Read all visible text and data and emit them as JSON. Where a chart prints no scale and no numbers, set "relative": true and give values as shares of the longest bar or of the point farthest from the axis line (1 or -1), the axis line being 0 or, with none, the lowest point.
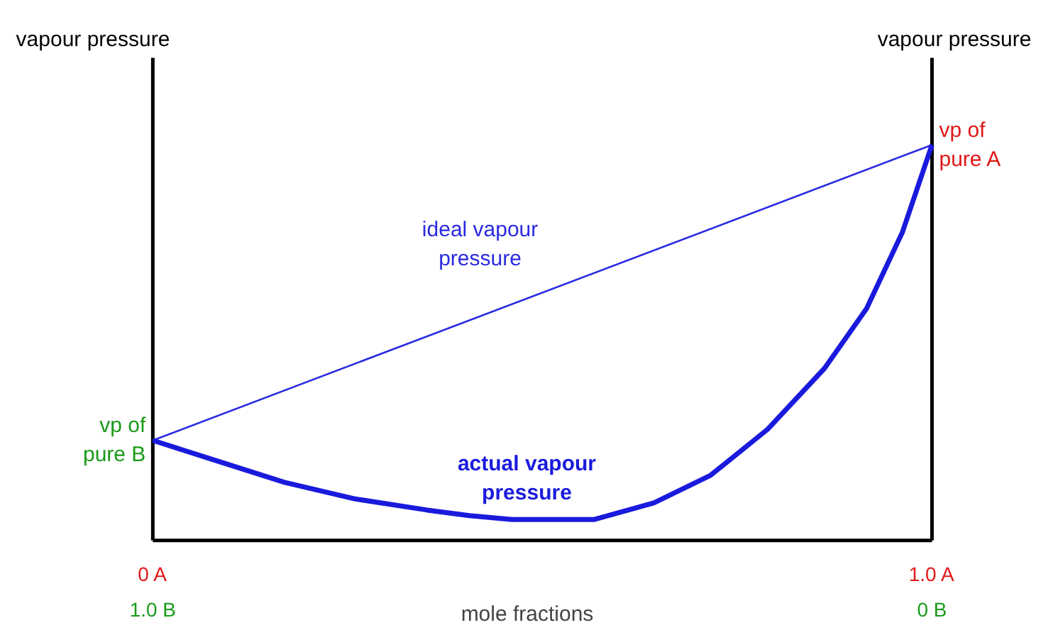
{
  "chart_data": {
    "type": "line",
    "relative": true,
    "xlabel": "mole fractions",
    "ylabel": "vapour pressure",
    "y2label": "vapour pressure",
    "xlim": [
      0,
      1
    ],
    "xticks": [
      {
        "value": 0,
        "label": "0 A"
      },
      {
        "value": 1,
        "label": "1.0 A"
      }
    ],
    "x2lim": [
      1,
      0
    ],
    "x2ticks": [
      {
        "value": 1,
        "label": "1.0 B"
      },
      {
        "value": 0,
        "label": "0 B"
      }
    ],
    "marker": "none",
    "line_style": "solid",
    "series": [
      {
        "name": "ideal vapour pressure",
        "color": "#2a2ae0",
        "x": [
          0,
          1
        ],
        "values": [
          0.253,
          1
        ]
      },
      {
        "name": "actual vapour pressure",
        "color": "#1a1add",
        "x": [
          0,
          0.078,
          0.169,
          0.26,
          0.352,
          0.406,
          0.461,
          0.566,
          0.643,
          0.716,
          0.789,
          0.862,
          0.916,
          0.962,
          1
        ],
        "values": [
          0.253,
          0.204,
          0.147,
          0.105,
          0.077,
          0.063,
          0.053,
          0.053,
          0.095,
          0.165,
          0.281,
          0.435,
          0.586,
          0.779,
          1
        ]
      }
    ],
    "annotations": [
      {
        "text": "vp of pure A",
        "x": 1,
        "y": 1
      },
      {
        "text": "vp of pure B",
        "x": 0,
        "y": 0.253
      }
    ]
  }
}
